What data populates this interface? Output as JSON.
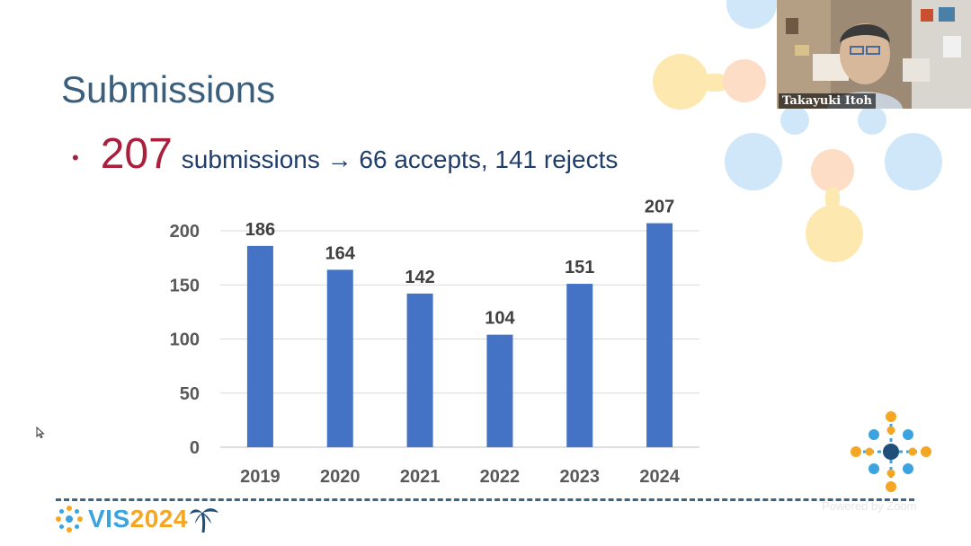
{
  "slide": {
    "title": "Submissions",
    "bullet": {
      "number": "207",
      "text": "submissions → 66 accepts, 141 rejects"
    }
  },
  "chart_data": {
    "type": "bar",
    "categories": [
      "2019",
      "2020",
      "2021",
      "2022",
      "2023",
      "2024"
    ],
    "values": [
      186,
      164,
      142,
      104,
      151,
      207
    ],
    "title": "",
    "xlabel": "",
    "ylabel": "",
    "ylim": [
      0,
      200
    ],
    "yticks": [
      0,
      50,
      100,
      150,
      200
    ],
    "bar_color": "#4472c4",
    "grid": true,
    "data_labels": true
  },
  "video": {
    "participant_name": "Takayuki Itoh"
  },
  "footer": {
    "logo_vis": "VIS",
    "logo_year": "2024",
    "powered_by": "Powered by Zoom"
  },
  "colors": {
    "title": "#3a5f7d",
    "accent": "#a8203c",
    "text": "#1f3d6b",
    "deco_blue": "#bfe0f5",
    "deco_yellow": "#fde6a8",
    "deco_peach": "#fcdcc4"
  }
}
